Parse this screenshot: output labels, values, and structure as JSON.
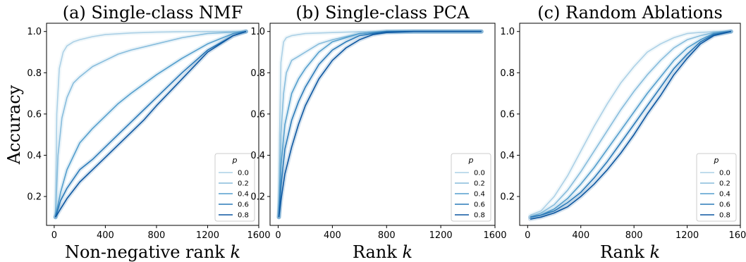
{
  "ylabel": "Accuracy",
  "colors": [
    "#abd0e6",
    "#86bcdc",
    "#539ecd",
    "#2a7ab9",
    "#0c56a0"
  ],
  "chart_data": [
    {
      "type": "line",
      "title": "(a) Single-class NMF",
      "xlabel_main": "Non-negative rank ",
      "xlabel_var": "k",
      "xlim": [
        -60,
        1600
      ],
      "ylim": [
        0.06,
        1.04
      ],
      "xticks": [
        "0",
        "400",
        "800",
        "1200",
        "1600"
      ],
      "xtick_values": [
        0,
        400,
        800,
        1200,
        1600
      ],
      "yticks": [
        "0.2",
        "0.4",
        "0.6",
        "0.8",
        "1.0"
      ],
      "ytick_values": [
        0.2,
        0.4,
        0.6,
        0.8,
        1.0
      ],
      "legend_title": "p",
      "legend_position": "lower-right",
      "series": [
        {
          "name": "0.0",
          "x": [
            10,
            20,
            40,
            70,
            100,
            150,
            200,
            300,
            400,
            600,
            800,
            1000,
            1200,
            1500
          ],
          "y": [
            0.1,
            0.6,
            0.82,
            0.9,
            0.93,
            0.95,
            0.96,
            0.975,
            0.985,
            0.993,
            0.997,
            0.999,
            1.0,
            1.0
          ]
        },
        {
          "name": "0.2",
          "x": [
            10,
            30,
            60,
            100,
            150,
            200,
            300,
            400,
            500,
            600,
            800,
            1000,
            1200,
            1500
          ],
          "y": [
            0.1,
            0.4,
            0.58,
            0.68,
            0.75,
            0.78,
            0.83,
            0.86,
            0.89,
            0.91,
            0.94,
            0.97,
            0.99,
            1.0
          ]
        },
        {
          "name": "0.4",
          "x": [
            10,
            50,
            100,
            200,
            300,
            400,
            500,
            600,
            800,
            1000,
            1200,
            1400,
            1500
          ],
          "y": [
            0.1,
            0.22,
            0.33,
            0.46,
            0.53,
            0.59,
            0.65,
            0.7,
            0.79,
            0.87,
            0.94,
            0.99,
            1.0
          ]
        },
        {
          "name": "0.6",
          "x": [
            10,
            50,
            100,
            200,
            300,
            400,
            500,
            600,
            700,
            800,
            1000,
            1200,
            1400,
            1500
          ],
          "y": [
            0.1,
            0.18,
            0.24,
            0.33,
            0.38,
            0.44,
            0.5,
            0.56,
            0.62,
            0.68,
            0.8,
            0.91,
            0.98,
            1.0
          ]
        },
        {
          "name": "0.8",
          "x": [
            10,
            50,
            100,
            200,
            300,
            400,
            500,
            600,
            700,
            800,
            1000,
            1200,
            1400,
            1500
          ],
          "y": [
            0.1,
            0.14,
            0.19,
            0.27,
            0.33,
            0.39,
            0.45,
            0.51,
            0.57,
            0.64,
            0.77,
            0.9,
            0.98,
            1.0
          ]
        }
      ]
    },
    {
      "type": "line",
      "title": "(b) Single-class PCA",
      "xlabel_main": "Rank ",
      "xlabel_var": "k",
      "xlim": [
        -60,
        1600
      ],
      "ylim": [
        0.06,
        1.04
      ],
      "xticks": [
        "0",
        "400",
        "800",
        "1200",
        "1600"
      ],
      "xtick_values": [
        0,
        400,
        800,
        1200,
        1600
      ],
      "yticks": [
        "0.2",
        "0.4",
        "0.6",
        "0.8",
        "1.0"
      ],
      "ytick_values": [
        0.2,
        0.4,
        0.6,
        0.8,
        1.0
      ],
      "legend_title": "p",
      "legend_position": "lower-right",
      "series": [
        {
          "name": "0.0",
          "x": [
            5,
            10,
            20,
            40,
            60,
            100,
            200,
            400,
            600,
            800,
            1000,
            1500
          ],
          "y": [
            0.1,
            0.5,
            0.85,
            0.95,
            0.97,
            0.98,
            0.99,
            0.995,
            0.999,
            1.0,
            1.0,
            1.0
          ]
        },
        {
          "name": "0.2",
          "x": [
            5,
            20,
            40,
            60,
            100,
            150,
            200,
            300,
            400,
            600,
            800,
            1000,
            1500
          ],
          "y": [
            0.1,
            0.5,
            0.7,
            0.8,
            0.86,
            0.88,
            0.9,
            0.94,
            0.96,
            0.99,
            1.0,
            1.0,
            1.0
          ]
        },
        {
          "name": "0.4",
          "x": [
            5,
            20,
            50,
            100,
            150,
            200,
            300,
            400,
            500,
            600,
            800,
            1000,
            1500
          ],
          "y": [
            0.1,
            0.35,
            0.55,
            0.7,
            0.77,
            0.82,
            0.9,
            0.95,
            0.97,
            0.99,
            1.0,
            1.0,
            1.0
          ]
        },
        {
          "name": "0.6",
          "x": [
            5,
            20,
            50,
            100,
            150,
            200,
            300,
            400,
            500,
            600,
            800,
            1000,
            1500
          ],
          "y": [
            0.1,
            0.25,
            0.43,
            0.57,
            0.66,
            0.73,
            0.84,
            0.91,
            0.95,
            0.98,
            1.0,
            1.0,
            1.0
          ]
        },
        {
          "name": "0.8",
          "x": [
            5,
            20,
            50,
            100,
            150,
            200,
            300,
            400,
            500,
            600,
            700,
            800,
            1000,
            1500
          ],
          "y": [
            0.1,
            0.18,
            0.31,
            0.44,
            0.55,
            0.64,
            0.77,
            0.86,
            0.92,
            0.96,
            0.985,
            0.995,
            1.0,
            1.0
          ]
        }
      ]
    },
    {
      "type": "line",
      "title": "(c) Random Ablations",
      "xlabel_main": "Rank ",
      "xlabel_var": "k",
      "xlim": [
        -60,
        1600
      ],
      "ylim": [
        0.06,
        1.04
      ],
      "xticks": [
        "0",
        "400",
        "800",
        "1200",
        "1600"
      ],
      "xtick_values": [
        0,
        400,
        800,
        1200,
        1600
      ],
      "yticks": [
        "0.2",
        "0.4",
        "0.6",
        "0.8",
        "1.0"
      ],
      "ytick_values": [
        0.2,
        0.4,
        0.6,
        0.8,
        1.0
      ],
      "legend_title": "p",
      "legend_position": "lower-right",
      "series": [
        {
          "name": "0.0",
          "x": [
            20,
            100,
            200,
            300,
            400,
            500,
            600,
            700,
            800,
            900,
            1000,
            1100,
            1200,
            1300,
            1400,
            1530
          ],
          "y": [
            0.11,
            0.13,
            0.2,
            0.3,
            0.42,
            0.54,
            0.65,
            0.75,
            0.83,
            0.9,
            0.94,
            0.97,
            0.99,
            0.996,
            0.999,
            1.0
          ]
        },
        {
          "name": "0.2",
          "x": [
            20,
            100,
            200,
            300,
            400,
            500,
            600,
            700,
            800,
            900,
            1000,
            1100,
            1200,
            1300,
            1400,
            1530
          ],
          "y": [
            0.1,
            0.12,
            0.16,
            0.23,
            0.32,
            0.42,
            0.52,
            0.62,
            0.71,
            0.79,
            0.86,
            0.92,
            0.96,
            0.98,
            0.995,
            1.0
          ]
        },
        {
          "name": "0.4",
          "x": [
            20,
            100,
            200,
            300,
            400,
            500,
            600,
            700,
            800,
            900,
            1000,
            1100,
            1200,
            1300,
            1400,
            1530
          ],
          "y": [
            0.1,
            0.11,
            0.14,
            0.19,
            0.26,
            0.34,
            0.43,
            0.52,
            0.61,
            0.7,
            0.78,
            0.86,
            0.92,
            0.96,
            0.99,
            1.0
          ]
        },
        {
          "name": "0.6",
          "x": [
            20,
            100,
            200,
            300,
            400,
            500,
            600,
            700,
            800,
            900,
            1000,
            1100,
            1200,
            1300,
            1400,
            1530
          ],
          "y": [
            0.1,
            0.11,
            0.13,
            0.17,
            0.22,
            0.29,
            0.37,
            0.46,
            0.55,
            0.64,
            0.73,
            0.82,
            0.89,
            0.95,
            0.985,
            1.0
          ]
        },
        {
          "name": "0.8",
          "x": [
            20,
            100,
            200,
            300,
            400,
            500,
            600,
            700,
            800,
            900,
            1000,
            1100,
            1200,
            1300,
            1400,
            1530
          ],
          "y": [
            0.09,
            0.1,
            0.12,
            0.15,
            0.2,
            0.26,
            0.33,
            0.41,
            0.5,
            0.6,
            0.69,
            0.79,
            0.87,
            0.94,
            0.98,
            1.0
          ]
        }
      ]
    }
  ]
}
